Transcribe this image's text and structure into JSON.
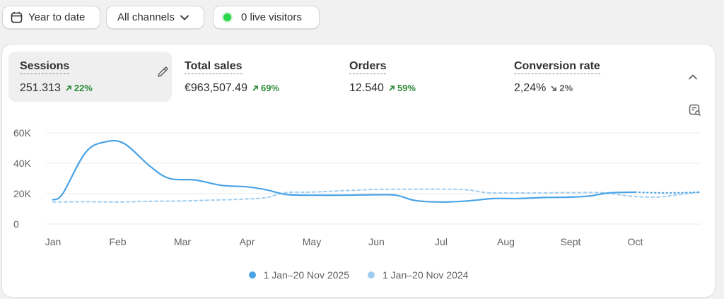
{
  "toolbar": {
    "date_range": "Year to date",
    "channels": "All channels",
    "live_visitors": "0 live visitors"
  },
  "metrics": [
    {
      "label": "Sessions",
      "value": "251.313",
      "change": "22%",
      "direction": "up"
    },
    {
      "label": "Total sales",
      "value": "€963,507.49",
      "change": "69%",
      "direction": "up"
    },
    {
      "label": "Orders",
      "value": "12.540",
      "change": "59%",
      "direction": "up"
    },
    {
      "label": "Conversion rate",
      "value": "2,24%",
      "change": "2%",
      "direction": "down"
    }
  ],
  "colors": {
    "current": "#4aa3e6",
    "previous": "#9fcdf0",
    "up": "#2f8a3a",
    "live": "#2bd74a"
  },
  "chart_data": {
    "type": "line",
    "x": [
      "Jan",
      "Feb",
      "Mar",
      "Apr",
      "May",
      "Jun",
      "Jul",
      "Aug",
      "Sept",
      "Oct"
    ],
    "ylim": [
      0,
      60000
    ],
    "yticks": [
      "0",
      "20K",
      "40K",
      "60K"
    ],
    "grid": true,
    "legend": "bottom",
    "series": [
      {
        "name": "1 Jan–20 Nov 2025",
        "style": "solid",
        "points": [
          [
            0,
            16000
          ],
          [
            0.15,
            20000
          ],
          [
            0.5,
            47000
          ],
          [
            0.8,
            54000
          ],
          [
            1.1,
            53000
          ],
          [
            1.5,
            38000
          ],
          [
            1.8,
            30000
          ],
          [
            2.2,
            29000
          ],
          [
            2.6,
            25500
          ],
          [
            3.0,
            24500
          ],
          [
            3.3,
            22500
          ],
          [
            3.6,
            19500
          ],
          [
            4.0,
            19000
          ],
          [
            4.5,
            19000
          ],
          [
            5.0,
            19300
          ],
          [
            5.3,
            19000
          ],
          [
            5.6,
            15500
          ],
          [
            6.0,
            14500
          ],
          [
            6.4,
            15200
          ],
          [
            6.8,
            16800
          ],
          [
            7.2,
            16800
          ],
          [
            7.6,
            17500
          ],
          [
            8.0,
            17700
          ],
          [
            8.3,
            18500
          ],
          [
            8.6,
            20500
          ],
          [
            9.0,
            21000
          ]
        ],
        "dotted_tail": [
          [
            9.0,
            21000
          ],
          [
            9.5,
            20500
          ],
          [
            10.0,
            21000
          ]
        ]
      },
      {
        "name": "1 Jan–20 Nov 2024",
        "style": "dashed",
        "points": [
          [
            0,
            14500
          ],
          [
            0.5,
            14700
          ],
          [
            1.0,
            14500
          ],
          [
            1.5,
            15000
          ],
          [
            2.0,
            15200
          ],
          [
            2.5,
            15800
          ],
          [
            3.0,
            16500
          ],
          [
            3.3,
            17500
          ],
          [
            3.6,
            20700
          ],
          [
            4.0,
            21000
          ],
          [
            4.5,
            22000
          ],
          [
            5.0,
            22800
          ],
          [
            5.5,
            22900
          ],
          [
            6.0,
            23000
          ],
          [
            6.4,
            22500
          ],
          [
            6.7,
            20700
          ],
          [
            7.0,
            20500
          ],
          [
            7.5,
            20500
          ],
          [
            8.0,
            20700
          ],
          [
            8.5,
            20600
          ],
          [
            8.9,
            18500
          ],
          [
            9.3,
            17700
          ],
          [
            9.6,
            19000
          ],
          [
            10.0,
            21000
          ]
        ]
      }
    ]
  }
}
